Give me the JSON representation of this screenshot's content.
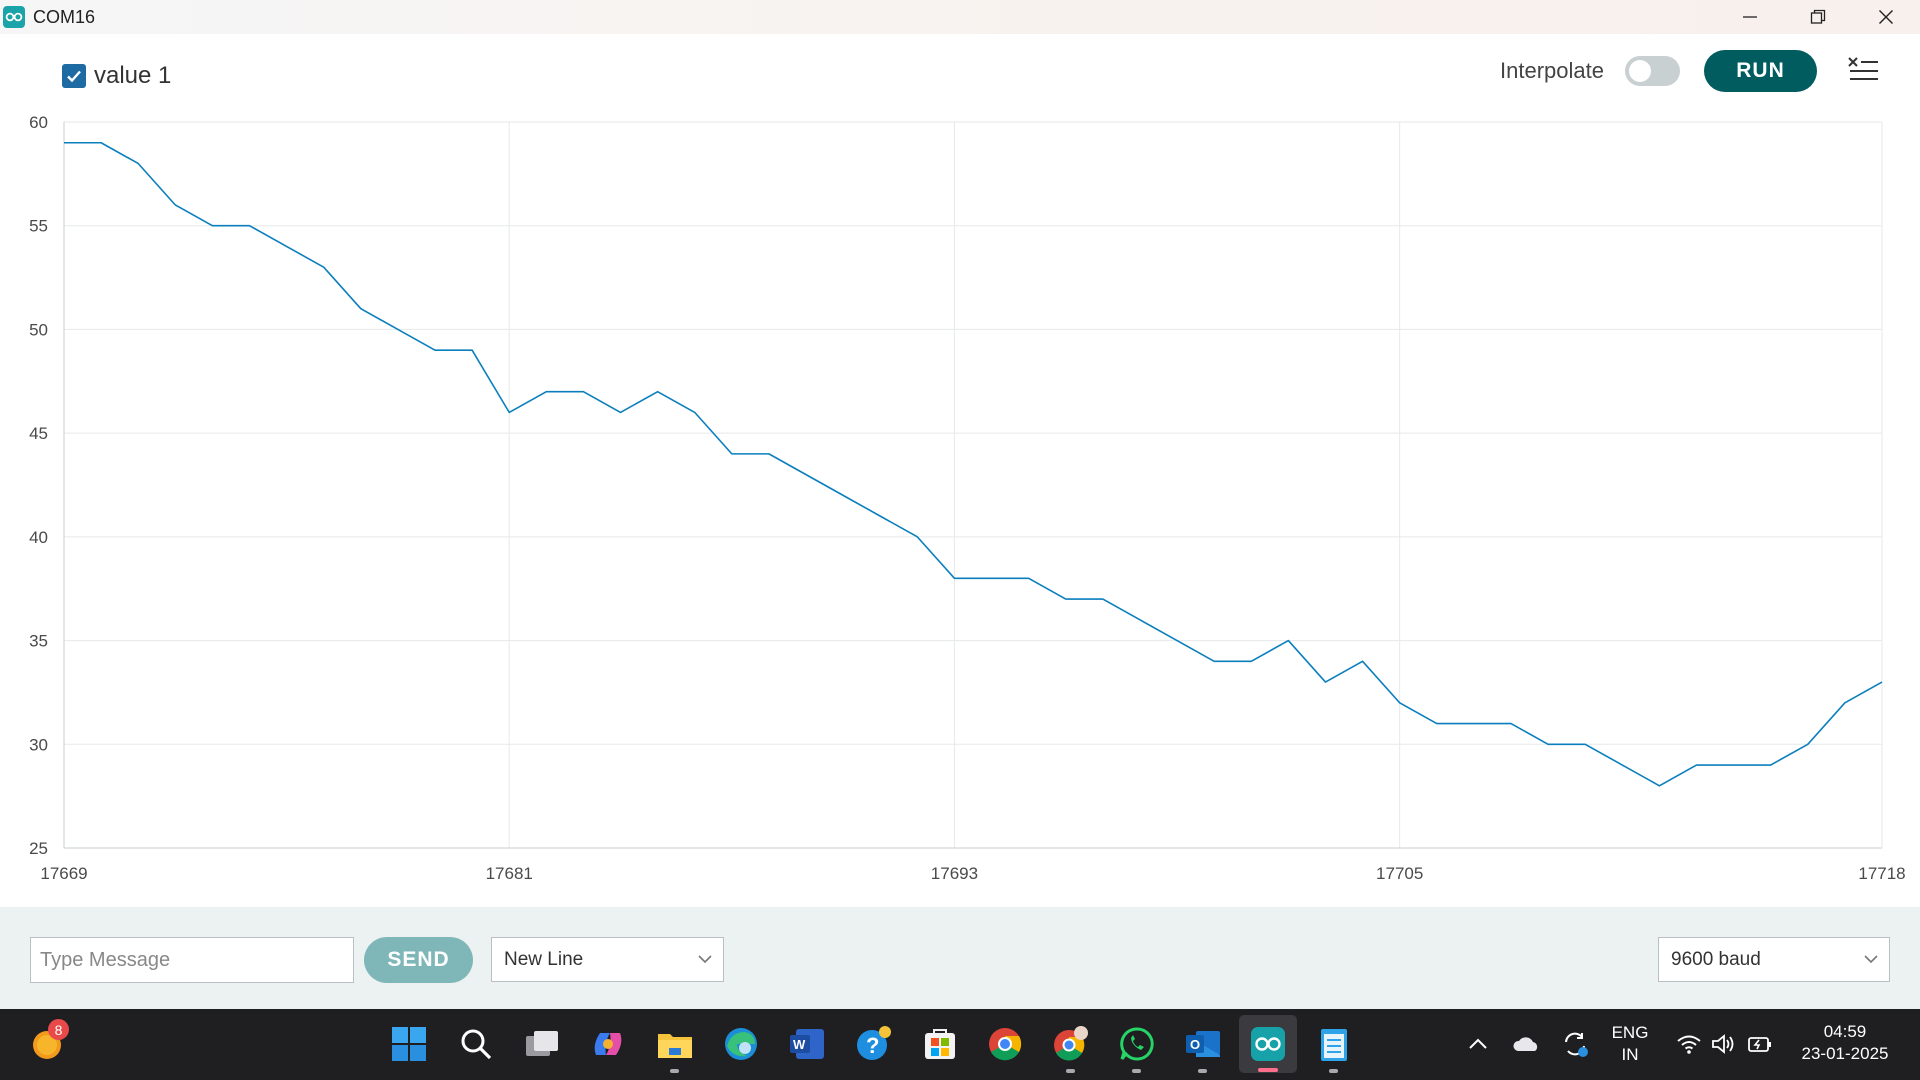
{
  "window": {
    "title": "COM16"
  },
  "toolbar": {
    "legend": [
      {
        "label": "value 1",
        "checked": true,
        "color": "#0b7fbd"
      }
    ],
    "interpolate_label": "Interpolate",
    "interpolate_on": false,
    "run_label": "RUN"
  },
  "chart_data": {
    "type": "line",
    "title": "",
    "xlabel": "",
    "ylabel": "",
    "xlim": [
      17669,
      17718
    ],
    "ylim": [
      25,
      60
    ],
    "x_ticks": [
      "17669",
      "17681",
      "17693",
      "17705",
      "17718"
    ],
    "y_ticks": [
      "60",
      "55",
      "50",
      "45",
      "40",
      "35",
      "30",
      "25"
    ],
    "grid": true,
    "legend_position": "top-left",
    "x": [
      17669,
      17670,
      17671,
      17672,
      17673,
      17674,
      17675,
      17676,
      17677,
      17678,
      17679,
      17680,
      17681,
      17682,
      17683,
      17684,
      17685,
      17686,
      17687,
      17688,
      17689,
      17690,
      17691,
      17692,
      17693,
      17694,
      17695,
      17696,
      17697,
      17698,
      17699,
      17700,
      17701,
      17702,
      17703,
      17704,
      17705,
      17706,
      17707,
      17708,
      17709,
      17710,
      17711,
      17712,
      17713,
      17714,
      17715,
      17716,
      17717,
      17718
    ],
    "series": [
      {
        "name": "value 1",
        "color": "#0b7fbd",
        "values": [
          59,
          59,
          58,
          56,
          55,
          55,
          54,
          53,
          51,
          50,
          49,
          49,
          46,
          47,
          47,
          46,
          47,
          46,
          44,
          44,
          43,
          42,
          41,
          40,
          38,
          38,
          38,
          37,
          37,
          36,
          35,
          34,
          34,
          35,
          33,
          34,
          32,
          31,
          31,
          31,
          30,
          30,
          29,
          28,
          29,
          29,
          29,
          30,
          32,
          33
        ]
      }
    ]
  },
  "bottom": {
    "message_placeholder": "Type Message",
    "send_label": "SEND",
    "line_ending": "New Line",
    "baud": "9600 baud"
  },
  "taskbar": {
    "notification_count": "8",
    "language_line1": "ENG",
    "language_line2": "IN",
    "time": "04:59",
    "date": "23-01-2025",
    "icons": [
      "weather-icon",
      "start-icon",
      "search-icon",
      "task-view-icon",
      "copilot-icon",
      "file-explorer-icon",
      "edge-icon",
      "word-icon",
      "help-icon",
      "store-icon",
      "chrome-icon",
      "chrome-profile-icon",
      "whatsapp-icon",
      "outlook-icon",
      "arduino-icon",
      "notepad-icon"
    ]
  }
}
